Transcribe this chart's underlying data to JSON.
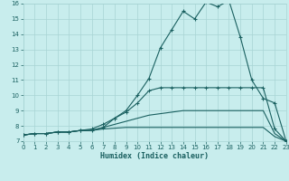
{
  "xlabel": "Humidex (Indice chaleur)",
  "xlim": [
    0,
    23
  ],
  "ylim": [
    7,
    16
  ],
  "yticks": [
    7,
    8,
    9,
    10,
    11,
    12,
    13,
    14,
    15,
    16
  ],
  "xticks": [
    0,
    1,
    2,
    3,
    4,
    5,
    6,
    7,
    8,
    9,
    10,
    11,
    12,
    13,
    14,
    15,
    16,
    17,
    18,
    19,
    20,
    21,
    22,
    23
  ],
  "bg_color": "#c8eded",
  "grid_color": "#a8d4d4",
  "line_color": "#1a6060",
  "line1_x": [
    0,
    1,
    2,
    3,
    4,
    5,
    6,
    7,
    8,
    9,
    10,
    11,
    12,
    13,
    14,
    15,
    16,
    17,
    18,
    19,
    20,
    21,
    22,
    23
  ],
  "line1_y": [
    7.4,
    7.5,
    7.5,
    7.6,
    7.6,
    7.7,
    7.7,
    7.9,
    8.5,
    9.0,
    10.0,
    11.1,
    13.1,
    14.3,
    15.5,
    15.0,
    16.1,
    15.8,
    16.2,
    13.8,
    11.0,
    9.8,
    9.5,
    7.0
  ],
  "line2_x": [
    0,
    1,
    2,
    3,
    4,
    5,
    6,
    7,
    8,
    9,
    10,
    11,
    12,
    13,
    14,
    15,
    16,
    17,
    18,
    19,
    20,
    21,
    22,
    23
  ],
  "line2_y": [
    7.4,
    7.5,
    7.5,
    7.6,
    7.6,
    7.7,
    7.8,
    8.1,
    8.5,
    8.9,
    9.5,
    10.3,
    10.5,
    10.5,
    10.5,
    10.5,
    10.5,
    10.5,
    10.5,
    10.5,
    10.5,
    10.5,
    7.8,
    7.0
  ],
  "line3_x": [
    0,
    1,
    2,
    3,
    4,
    5,
    6,
    7,
    8,
    9,
    10,
    11,
    12,
    13,
    14,
    15,
    16,
    17,
    18,
    19,
    20,
    21,
    22,
    23
  ],
  "line3_y": [
    7.4,
    7.5,
    7.5,
    7.6,
    7.6,
    7.7,
    7.7,
    7.9,
    8.1,
    8.3,
    8.5,
    8.7,
    8.8,
    8.9,
    9.0,
    9.0,
    9.0,
    9.0,
    9.0,
    9.0,
    9.0,
    9.0,
    7.5,
    7.0
  ],
  "line4_x": [
    0,
    1,
    2,
    3,
    4,
    5,
    6,
    7,
    8,
    9,
    10,
    11,
    12,
    13,
    14,
    15,
    16,
    17,
    18,
    19,
    20,
    21,
    22,
    23
  ],
  "line4_y": [
    7.4,
    7.5,
    7.5,
    7.6,
    7.6,
    7.7,
    7.7,
    7.8,
    7.85,
    7.9,
    7.9,
    7.9,
    7.9,
    7.9,
    7.9,
    7.9,
    7.9,
    7.9,
    7.9,
    7.9,
    7.9,
    7.9,
    7.3,
    7.0
  ]
}
